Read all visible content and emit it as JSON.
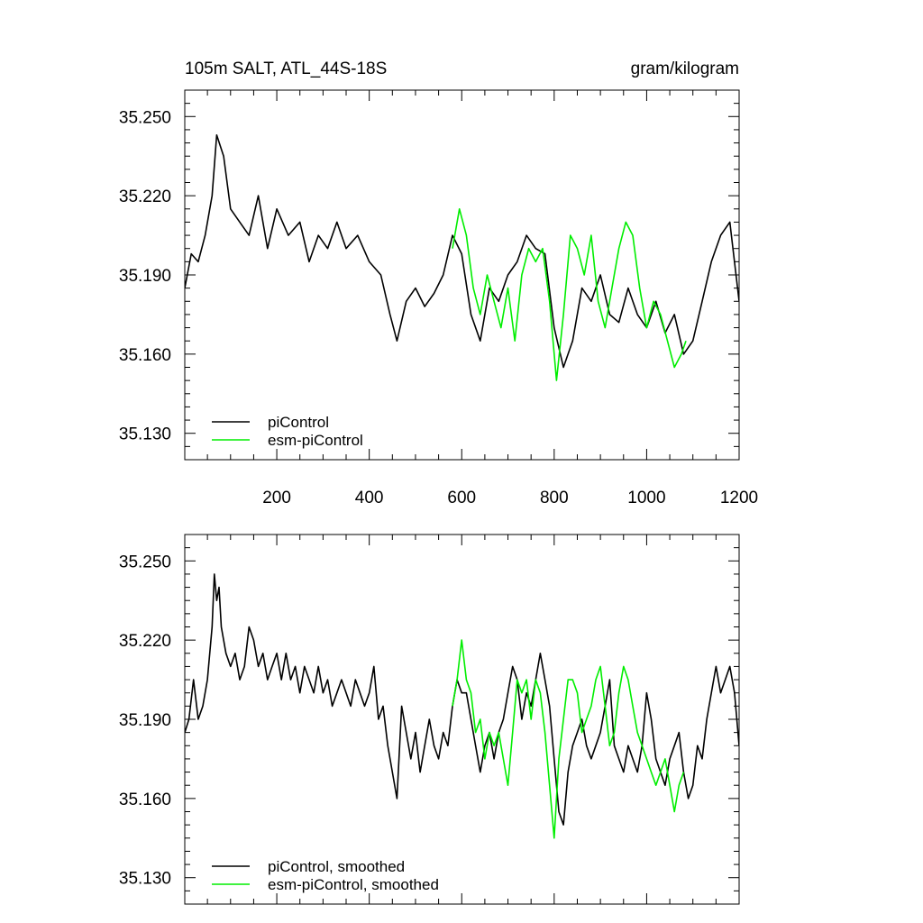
{
  "header": {
    "title_left": "105m SALT, ATL_44S-18S",
    "title_right": "gram/kilogram"
  },
  "chart_data": [
    {
      "type": "line",
      "panel": "top",
      "xlim": [
        1,
        1200
      ],
      "ylim": [
        35.12,
        35.26
      ],
      "x_ticks": [
        200,
        400,
        600,
        800,
        1000,
        1200
      ],
      "x_tick_labels": [
        "200",
        "400",
        "600",
        "800",
        "1000",
        "1200"
      ],
      "y_ticks": [
        35.13,
        35.16,
        35.19,
        35.22,
        35.25
      ],
      "y_tick_labels": [
        "35.130",
        "35.160",
        "35.190",
        "35.220",
        "35.250"
      ],
      "legend_position": "bottom-left",
      "series": [
        {
          "name": "piControl",
          "color": "#000000",
          "x": [
            1,
            15,
            30,
            45,
            60,
            70,
            85,
            100,
            120,
            140,
            160,
            180,
            200,
            225,
            250,
            270,
            290,
            310,
            330,
            350,
            375,
            400,
            425,
            445,
            460,
            480,
            500,
            520,
            540,
            560,
            580,
            600,
            620,
            640,
            660,
            680,
            700,
            720,
            740,
            760,
            780,
            800,
            820,
            840,
            860,
            880,
            900,
            920,
            940,
            960,
            980,
            1000,
            1020,
            1040,
            1060,
            1080,
            1100,
            1120,
            1140,
            1160,
            1180,
            1200
          ],
          "y": [
            35.185,
            35.198,
            35.195,
            35.205,
            35.22,
            35.243,
            35.235,
            35.215,
            35.21,
            35.205,
            35.22,
            35.2,
            35.215,
            35.205,
            35.21,
            35.195,
            35.205,
            35.2,
            35.21,
            35.2,
            35.205,
            35.195,
            35.19,
            35.175,
            35.165,
            35.18,
            35.185,
            35.178,
            35.183,
            35.19,
            35.205,
            35.198,
            35.175,
            35.165,
            35.185,
            35.18,
            35.19,
            35.195,
            35.205,
            35.2,
            35.198,
            35.17,
            35.155,
            35.165,
            35.185,
            35.18,
            35.19,
            35.175,
            35.172,
            35.185,
            35.175,
            35.17,
            35.18,
            35.168,
            35.175,
            35.16,
            35.165,
            35.18,
            35.195,
            35.205,
            35.21,
            35.18
          ]
        },
        {
          "name": "esm-piControl",
          "color": "#00ee00",
          "x": [
            580,
            595,
            610,
            625,
            640,
            655,
            670,
            685,
            700,
            715,
            730,
            745,
            760,
            775,
            790,
            805,
            820,
            835,
            850,
            865,
            880,
            895,
            910,
            925,
            940,
            955,
            970,
            985,
            1000,
            1015,
            1030,
            1045,
            1060,
            1075,
            1085
          ],
          "y": [
            35.2,
            35.215,
            35.205,
            35.185,
            35.175,
            35.19,
            35.18,
            35.17,
            35.185,
            35.165,
            35.19,
            35.2,
            35.195,
            35.2,
            35.18,
            35.15,
            35.175,
            35.205,
            35.2,
            35.19,
            35.205,
            35.18,
            35.17,
            35.185,
            35.2,
            35.21,
            35.205,
            35.185,
            35.17,
            35.18,
            35.175,
            35.165,
            35.155,
            35.16,
            35.165
          ]
        }
      ]
    },
    {
      "type": "line",
      "panel": "bottom",
      "xlim": [
        1,
        1200
      ],
      "ylim": [
        35.12,
        35.26
      ],
      "x_ticks": [
        200,
        400,
        600,
        800,
        1000,
        1200
      ],
      "y_ticks": [
        35.13,
        35.16,
        35.19,
        35.22,
        35.25
      ],
      "y_tick_labels": [
        "35.130",
        "35.160",
        "35.190",
        "35.220",
        "35.250"
      ],
      "legend_position": "bottom-left",
      "series": [
        {
          "name": "piControl, smoothed",
          "color": "#000000",
          "x": [
            1,
            10,
            20,
            30,
            40,
            50,
            60,
            65,
            70,
            75,
            80,
            90,
            100,
            110,
            120,
            130,
            140,
            150,
            160,
            170,
            180,
            190,
            200,
            210,
            220,
            230,
            240,
            250,
            260,
            270,
            280,
            290,
            300,
            310,
            320,
            330,
            340,
            350,
            360,
            370,
            380,
            390,
            400,
            410,
            420,
            430,
            440,
            450,
            460,
            470,
            480,
            490,
            500,
            510,
            520,
            530,
            540,
            550,
            560,
            570,
            580,
            590,
            600,
            610,
            620,
            630,
            640,
            650,
            660,
            670,
            680,
            690,
            700,
            710,
            720,
            730,
            740,
            750,
            760,
            770,
            780,
            790,
            800,
            810,
            820,
            830,
            840,
            850,
            860,
            870,
            880,
            890,
            900,
            910,
            920,
            930,
            940,
            950,
            960,
            970,
            980,
            990,
            1000,
            1010,
            1020,
            1030,
            1040,
            1050,
            1060,
            1070,
            1080,
            1090,
            1100,
            1110,
            1120,
            1130,
            1140,
            1150,
            1160,
            1170,
            1180,
            1190,
            1200
          ],
          "y": [
            35.185,
            35.19,
            35.205,
            35.19,
            35.195,
            35.205,
            35.225,
            35.245,
            35.235,
            35.24,
            35.225,
            35.215,
            35.21,
            35.215,
            35.205,
            35.21,
            35.225,
            35.22,
            35.21,
            35.215,
            35.205,
            35.21,
            35.215,
            35.205,
            35.215,
            35.205,
            35.21,
            35.2,
            35.21,
            35.205,
            35.2,
            35.21,
            35.2,
            35.205,
            35.195,
            35.2,
            35.205,
            35.2,
            35.195,
            35.205,
            35.2,
            35.195,
            35.2,
            35.21,
            35.19,
            35.195,
            35.18,
            35.17,
            35.16,
            35.195,
            35.185,
            35.175,
            35.185,
            35.17,
            35.18,
            35.19,
            35.18,
            35.175,
            35.185,
            35.18,
            35.195,
            35.205,
            35.2,
            35.2,
            35.19,
            35.18,
            35.17,
            35.18,
            35.185,
            35.175,
            35.185,
            35.19,
            35.2,
            35.21,
            35.205,
            35.19,
            35.2,
            35.195,
            35.205,
            35.215,
            35.205,
            35.195,
            35.175,
            35.155,
            35.15,
            35.17,
            35.18,
            35.185,
            35.19,
            35.18,
            35.175,
            35.18,
            35.185,
            35.195,
            35.205,
            35.18,
            35.175,
            35.17,
            35.18,
            35.175,
            35.17,
            35.18,
            35.2,
            35.19,
            35.175,
            35.17,
            35.165,
            35.175,
            35.18,
            35.185,
            35.17,
            35.16,
            35.165,
            35.18,
            35.175,
            35.19,
            35.2,
            35.21,
            35.2,
            35.205,
            35.21,
            35.2,
            35.18
          ]
        },
        {
          "name": "esm-piControl, smoothed",
          "color": "#00ee00",
          "x": [
            580,
            590,
            600,
            610,
            620,
            630,
            640,
            650,
            660,
            670,
            680,
            690,
            700,
            710,
            720,
            730,
            740,
            750,
            760,
            770,
            780,
            790,
            800,
            810,
            820,
            830,
            840,
            850,
            860,
            870,
            880,
            890,
            900,
            910,
            920,
            930,
            940,
            950,
            960,
            970,
            980,
            990,
            1000,
            1010,
            1020,
            1030,
            1040,
            1050,
            1060,
            1070,
            1080
          ],
          "y": [
            35.195,
            35.205,
            35.22,
            35.205,
            35.2,
            35.185,
            35.19,
            35.175,
            35.185,
            35.18,
            35.185,
            35.175,
            35.165,
            35.185,
            35.205,
            35.2,
            35.205,
            35.19,
            35.205,
            35.2,
            35.185,
            35.165,
            35.145,
            35.175,
            35.19,
            35.205,
            35.205,
            35.2,
            35.185,
            35.19,
            35.195,
            35.205,
            35.21,
            35.195,
            35.18,
            35.185,
            35.2,
            35.21,
            35.205,
            35.195,
            35.185,
            35.18,
            35.175,
            35.17,
            35.165,
            35.17,
            35.175,
            35.165,
            35.155,
            35.165,
            35.17
          ]
        }
      ]
    }
  ]
}
